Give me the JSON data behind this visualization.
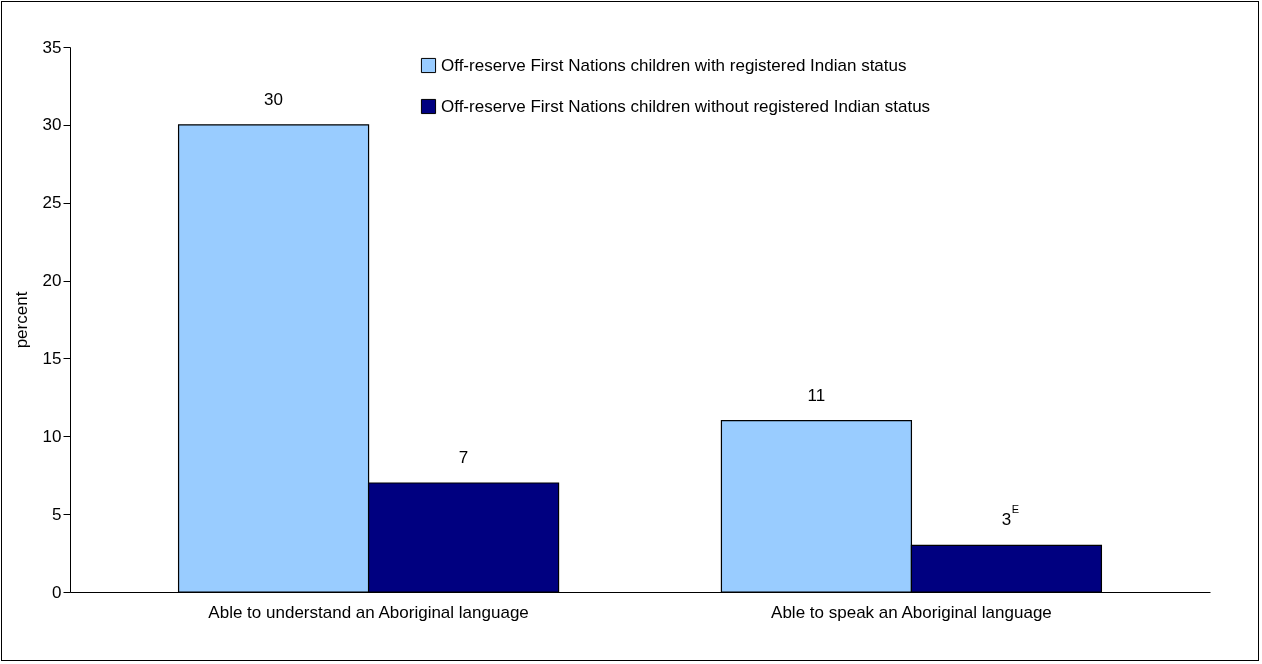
{
  "chart_data": {
    "type": "bar",
    "ylabel": "percent",
    "categories": [
      "Able to understand an Aboriginal language",
      "Able to speak an Aboriginal language"
    ],
    "series": [
      {
        "name": "Off-reserve First Nations children with registered Indian status",
        "color": "#99ccff",
        "values": [
          30,
          11
        ],
        "value_labels": [
          "30",
          "11"
        ]
      },
      {
        "name": "Off-reserve First Nations children without registered Indian status",
        "color": "#000080",
        "values": [
          7,
          3
        ],
        "value_labels": [
          "7",
          "3$^{E}$"
        ]
      }
    ],
    "ylim": [
      0,
      35
    ],
    "yticks": [
      0,
      5,
      10,
      15,
      20,
      25,
      30,
      35
    ],
    "grid": false,
    "legend": "top right"
  }
}
